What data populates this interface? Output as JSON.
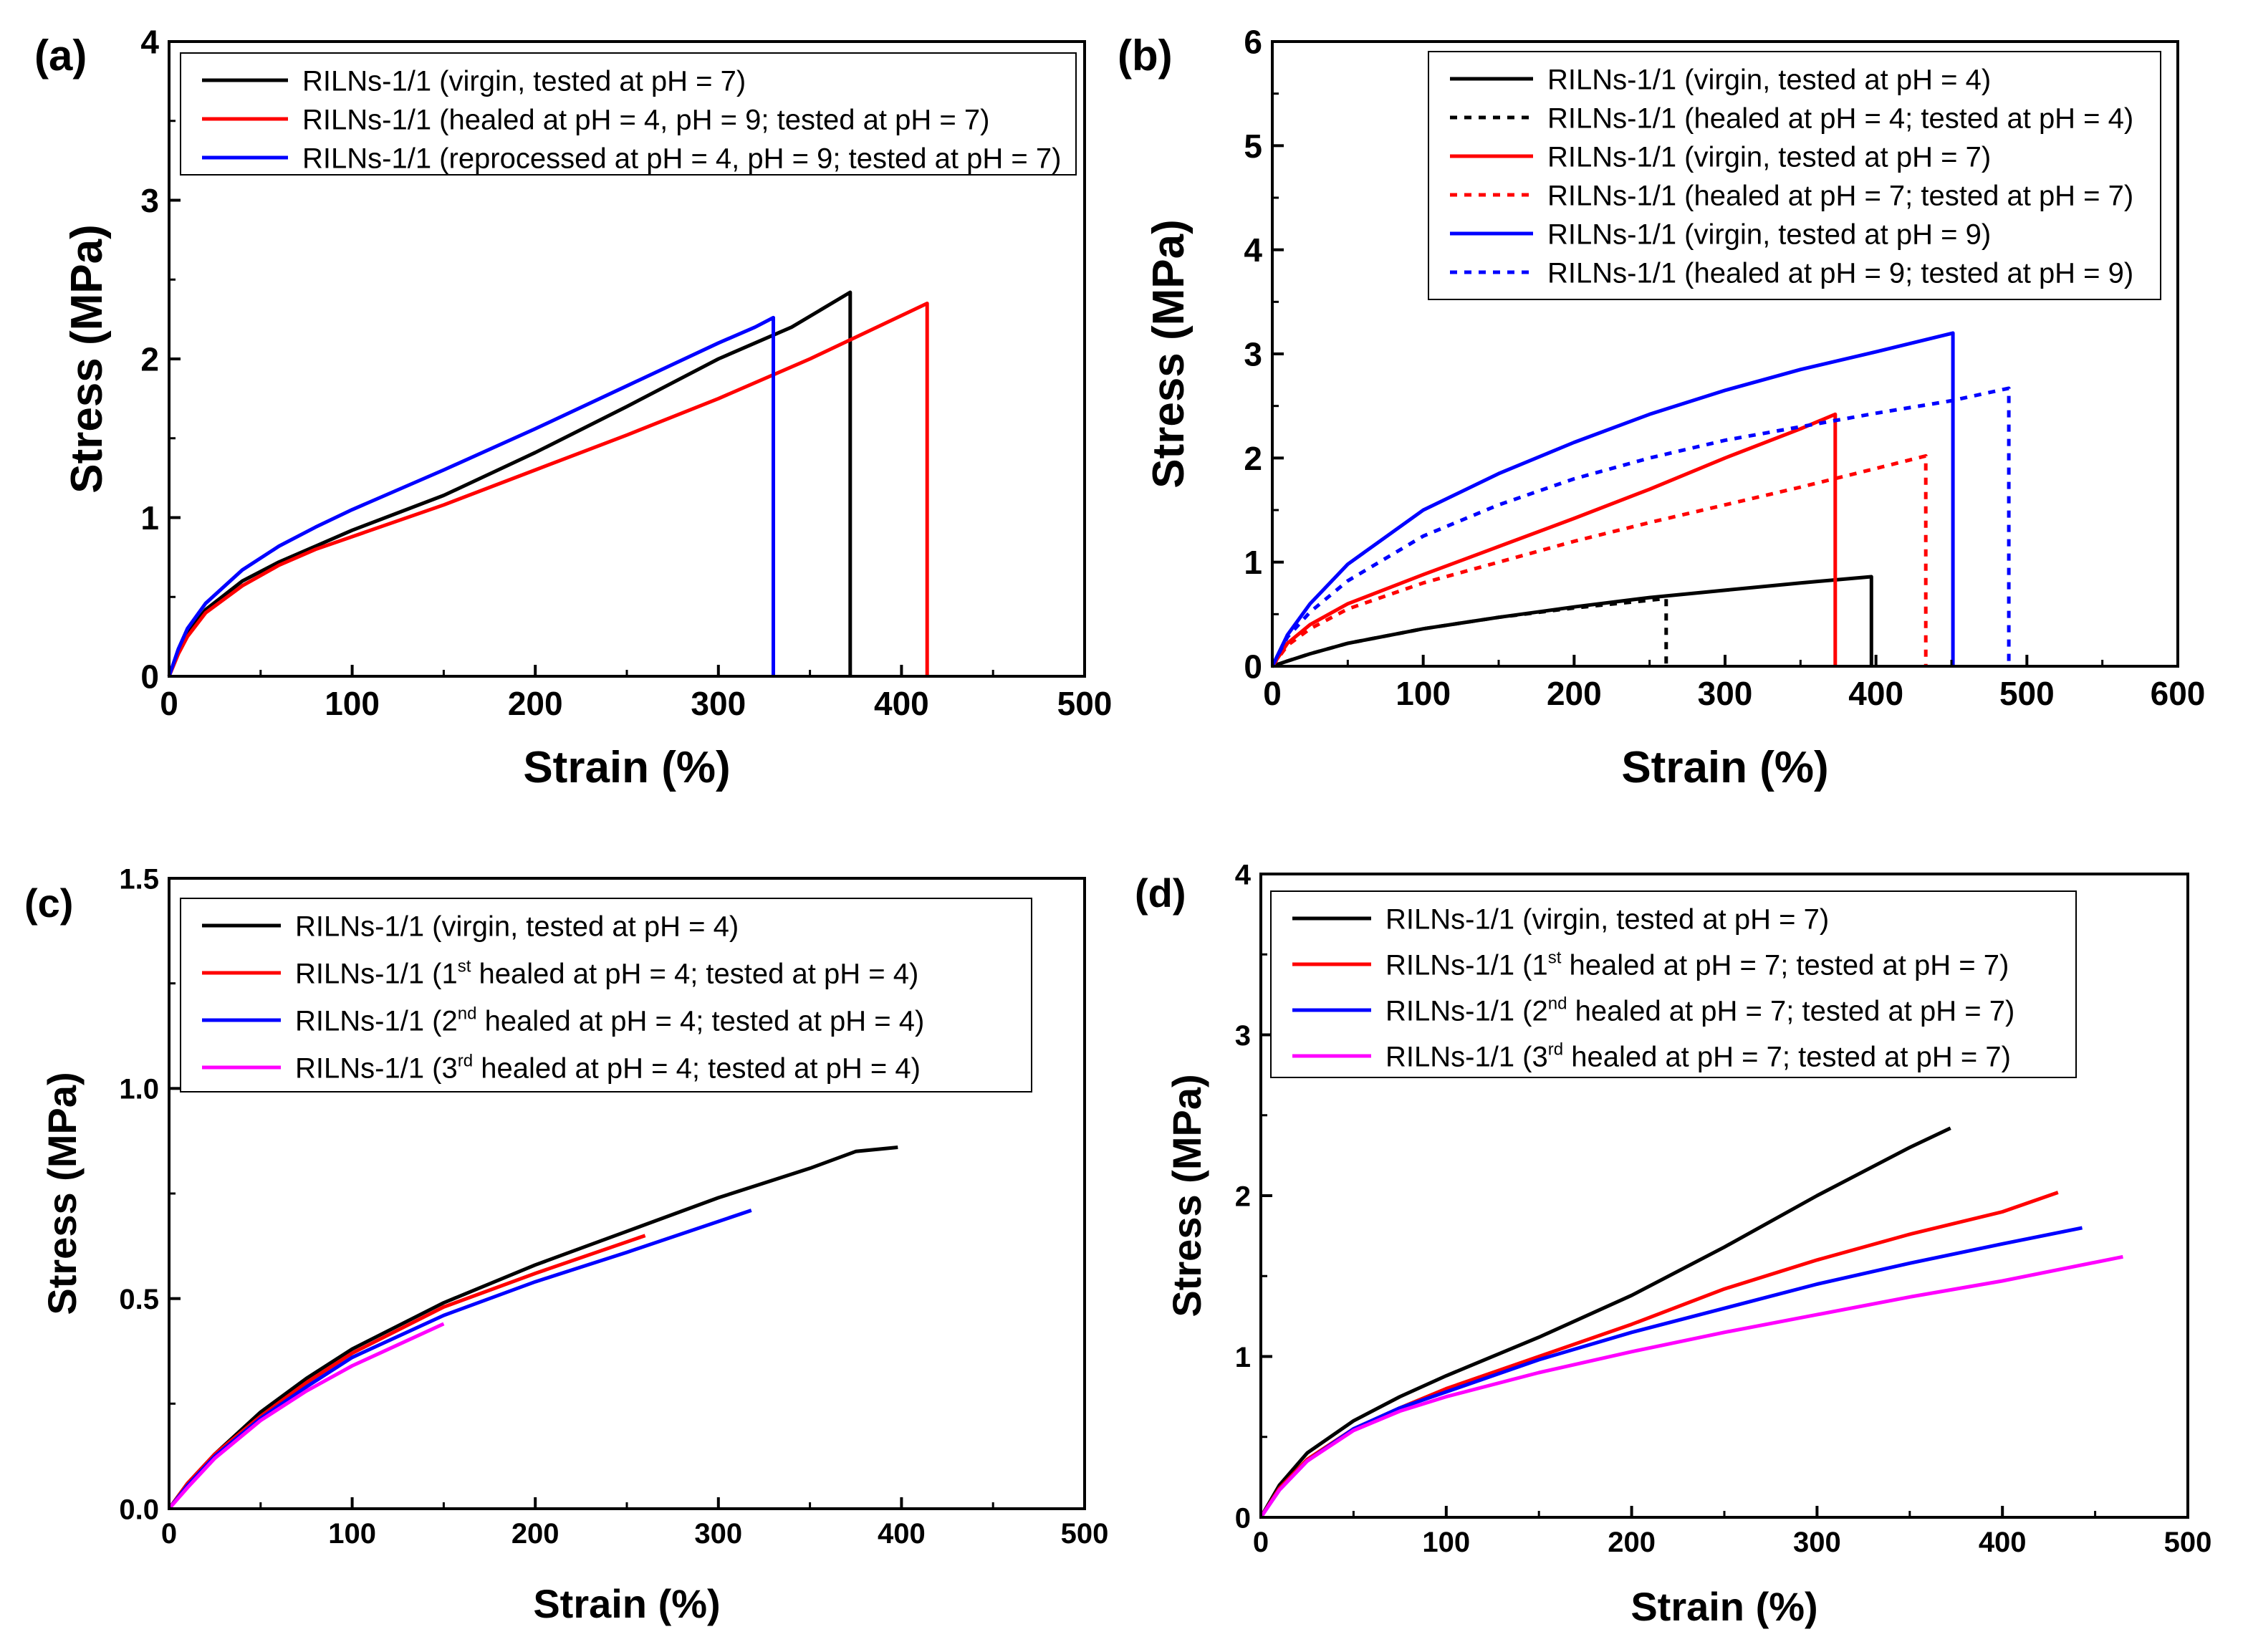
{
  "colors": {
    "black": "#000000",
    "red": "#ff0000",
    "blue": "#0000ff",
    "magenta": "#ff00ff"
  },
  "chart_data": [
    {
      "panel": "(a)",
      "type": "line",
      "xlabel": "Strain (%)",
      "ylabel": "Stress (MPa)",
      "xlim": [
        0,
        500
      ],
      "ylim": [
        0,
        4
      ],
      "xticks": [
        "0",
        "100",
        "200",
        "300",
        "400",
        "500"
      ],
      "yticks": [
        "0",
        "1",
        "2",
        "3",
        "4"
      ],
      "legend_position": "top-left",
      "series": [
        {
          "name": "RILNs-1/1 (virgin, tested at pH = 7)",
          "color": "#000000",
          "dash": "solid",
          "x": [
            0,
            5,
            10,
            20,
            40,
            60,
            80,
            100,
            150,
            200,
            250,
            300,
            340,
            372,
            372
          ],
          "y": [
            0,
            0.15,
            0.27,
            0.42,
            0.6,
            0.72,
            0.82,
            0.92,
            1.14,
            1.41,
            1.7,
            2.0,
            2.2,
            2.42,
            0
          ]
        },
        {
          "name": "RILNs-1/1 (healed at pH = 4, pH = 9; tested at pH = 7)",
          "color": "#ff0000",
          "dash": "solid",
          "x": [
            0,
            5,
            10,
            20,
            40,
            60,
            80,
            100,
            150,
            200,
            250,
            300,
            350,
            414,
            414
          ],
          "y": [
            0,
            0.14,
            0.25,
            0.4,
            0.57,
            0.7,
            0.8,
            0.88,
            1.08,
            1.3,
            1.52,
            1.75,
            2.0,
            2.35,
            0
          ]
        },
        {
          "name": "RILNs-1/1 (reprocessed at pH = 4, pH = 9; tested at pH = 7)",
          "color": "#0000ff",
          "dash": "solid",
          "x": [
            0,
            5,
            10,
            20,
            40,
            60,
            80,
            100,
            150,
            200,
            250,
            300,
            320,
            330,
            330
          ],
          "y": [
            0,
            0.17,
            0.3,
            0.46,
            0.67,
            0.82,
            0.94,
            1.05,
            1.3,
            1.56,
            1.83,
            2.1,
            2.2,
            2.26,
            0
          ]
        }
      ]
    },
    {
      "panel": "(b)",
      "type": "line",
      "xlabel": "Strain (%)",
      "ylabel": "Stress (MPa)",
      "xlim": [
        0,
        600
      ],
      "ylim": [
        0,
        6
      ],
      "xticks": [
        "0",
        "100",
        "200",
        "300",
        "400",
        "500",
        "600"
      ],
      "yticks": [
        "0",
        "1",
        "2",
        "3",
        "4",
        "5",
        "6"
      ],
      "legend_position": "top-right",
      "series": [
        {
          "name": "RILNs-1/1 (virgin, tested at pH = 4)",
          "color": "#000000",
          "dash": "solid",
          "x": [
            0,
            10,
            25,
            50,
            100,
            150,
            200,
            250,
            300,
            350,
            397,
            397
          ],
          "y": [
            0,
            0.05,
            0.12,
            0.22,
            0.36,
            0.47,
            0.57,
            0.66,
            0.73,
            0.8,
            0.86,
            0
          ]
        },
        {
          "name": "RILNs-1/1 (healed at pH = 4; tested at pH = 4)",
          "color": "#000000",
          "dash": "dotted",
          "x": [
            0,
            10,
            25,
            50,
            100,
            150,
            200,
            261,
            261
          ],
          "y": [
            0,
            0.05,
            0.12,
            0.22,
            0.36,
            0.47,
            0.56,
            0.65,
            0
          ]
        },
        {
          "name": "RILNs-1/1 (virgin, tested at pH = 7)",
          "color": "#ff0000",
          "dash": "solid",
          "x": [
            0,
            10,
            25,
            50,
            100,
            150,
            200,
            250,
            300,
            350,
            373,
            373
          ],
          "y": [
            0,
            0.22,
            0.4,
            0.6,
            0.88,
            1.15,
            1.42,
            1.7,
            2.0,
            2.28,
            2.42,
            0
          ]
        },
        {
          "name": "RILNs-1/1 (healed at pH = 7; tested at pH = 7)",
          "color": "#ff0000",
          "dash": "dotted",
          "x": [
            0,
            10,
            25,
            50,
            100,
            150,
            200,
            250,
            300,
            350,
            400,
            433,
            433
          ],
          "y": [
            0,
            0.2,
            0.36,
            0.55,
            0.8,
            1.0,
            1.2,
            1.38,
            1.55,
            1.72,
            1.9,
            2.02,
            0
          ]
        },
        {
          "name": "RILNs-1/1 (virgin, tested at pH = 9)",
          "color": "#0000ff",
          "dash": "solid",
          "x": [
            0,
            10,
            25,
            50,
            100,
            150,
            200,
            250,
            300,
            350,
            400,
            451,
            451
          ],
          "y": [
            0,
            0.3,
            0.6,
            0.98,
            1.5,
            1.85,
            2.15,
            2.42,
            2.65,
            2.85,
            3.02,
            3.2,
            0
          ]
        },
        {
          "name": "RILNs-1/1 (healed at pH = 9; tested at pH = 9)",
          "color": "#0000ff",
          "dash": "dotted",
          "x": [
            0,
            10,
            25,
            50,
            100,
            150,
            200,
            250,
            300,
            350,
            400,
            450,
            488,
            488
          ],
          "y": [
            0,
            0.28,
            0.52,
            0.82,
            1.25,
            1.55,
            1.8,
            2.0,
            2.17,
            2.3,
            2.43,
            2.55,
            2.67,
            0
          ]
        }
      ]
    },
    {
      "panel": "(c)",
      "type": "line",
      "xlabel": "Strain (%)",
      "ylabel": "Stress (MPa)",
      "xlim": [
        0,
        500
      ],
      "ylim": [
        0,
        1.5
      ],
      "xticks": [
        "0",
        "100",
        "200",
        "300",
        "400",
        "500"
      ],
      "yticks": [
        "0.0",
        "0.5",
        "1.0",
        "1.5"
      ],
      "legend_position": "top-left",
      "series": [
        {
          "name_parts": [
            "RILNs-1/1 (virgin, tested at pH = 4)",
            "",
            ""
          ],
          "color": "#000000",
          "dash": "solid",
          "x": [
            0,
            10,
            25,
            50,
            75,
            100,
            150,
            200,
            250,
            300,
            350,
            375,
            398
          ],
          "y": [
            0,
            0.06,
            0.13,
            0.23,
            0.31,
            0.38,
            0.49,
            0.58,
            0.66,
            0.74,
            0.81,
            0.85,
            0.86
          ]
        },
        {
          "name_parts": [
            "RILNs-1/1 (1",
            "st",
            " healed at pH = 4; tested at pH = 4)"
          ],
          "color": "#ff0000",
          "dash": "solid",
          "x": [
            0,
            10,
            25,
            50,
            75,
            100,
            150,
            200,
            260
          ],
          "y": [
            0,
            0.06,
            0.13,
            0.22,
            0.3,
            0.37,
            0.48,
            0.56,
            0.65
          ]
        },
        {
          "name_parts": [
            "RILNs-1/1 (2",
            "nd",
            " healed at pH = 4; tested at pH = 4)"
          ],
          "color": "#0000ff",
          "dash": "solid",
          "x": [
            0,
            10,
            25,
            50,
            75,
            100,
            150,
            200,
            250,
            318
          ],
          "y": [
            0,
            0.055,
            0.125,
            0.215,
            0.29,
            0.36,
            0.46,
            0.54,
            0.61,
            0.71
          ]
        },
        {
          "name_parts": [
            "RILNs-1/1 (3",
            "rd",
            " healed at pH = 4; tested at pH = 4)"
          ],
          "color": "#ff00ff",
          "dash": "solid",
          "x": [
            0,
            10,
            25,
            50,
            75,
            100,
            125,
            150
          ],
          "y": [
            0,
            0.05,
            0.12,
            0.21,
            0.28,
            0.34,
            0.39,
            0.44
          ]
        }
      ]
    },
    {
      "panel": "(d)",
      "type": "line",
      "xlabel": "Strain (%)",
      "ylabel": "Stress (MPa)",
      "xlim": [
        0,
        500
      ],
      "ylim": [
        0,
        4
      ],
      "xticks": [
        "0",
        "100",
        "200",
        "300",
        "400",
        "500"
      ],
      "yticks": [
        "0",
        "1",
        "2",
        "3",
        "4"
      ],
      "legend_position": "top-left",
      "series": [
        {
          "name_parts": [
            "RILNs-1/1 (virgin, tested at pH = 7)",
            "",
            ""
          ],
          "color": "#000000",
          "dash": "solid",
          "x": [
            0,
            10,
            25,
            50,
            75,
            100,
            150,
            200,
            250,
            300,
            350,
            372
          ],
          "y": [
            0,
            0.2,
            0.4,
            0.6,
            0.75,
            0.88,
            1.12,
            1.38,
            1.68,
            2.0,
            2.3,
            2.42
          ]
        },
        {
          "name_parts": [
            "RILNs-1/1 (1",
            "st",
            " healed at pH = 7; tested at pH = 7)"
          ],
          "color": "#ff0000",
          "dash": "solid",
          "x": [
            0,
            10,
            25,
            50,
            75,
            100,
            150,
            200,
            250,
            300,
            350,
            400,
            430
          ],
          "y": [
            0,
            0.18,
            0.36,
            0.55,
            0.68,
            0.8,
            1.0,
            1.2,
            1.42,
            1.6,
            1.76,
            1.9,
            2.02
          ]
        },
        {
          "name_parts": [
            "RILNs-1/1 (2",
            "nd",
            " healed at pH = 7; tested at pH = 7)"
          ],
          "color": "#0000ff",
          "dash": "solid",
          "x": [
            0,
            10,
            25,
            50,
            75,
            100,
            150,
            200,
            250,
            300,
            350,
            400,
            443
          ],
          "y": [
            0,
            0.17,
            0.35,
            0.55,
            0.68,
            0.78,
            0.98,
            1.15,
            1.3,
            1.45,
            1.58,
            1.7,
            1.8
          ]
        },
        {
          "name_parts": [
            "RILNs-1/1 (3",
            "rd",
            " healed at pH = 7; tested at pH = 7)"
          ],
          "color": "#ff00ff",
          "dash": "solid",
          "x": [
            0,
            10,
            25,
            50,
            75,
            100,
            150,
            200,
            250,
            300,
            350,
            400,
            465
          ],
          "y": [
            0,
            0.17,
            0.35,
            0.54,
            0.66,
            0.75,
            0.9,
            1.03,
            1.15,
            1.26,
            1.37,
            1.47,
            1.62
          ]
        }
      ]
    }
  ]
}
